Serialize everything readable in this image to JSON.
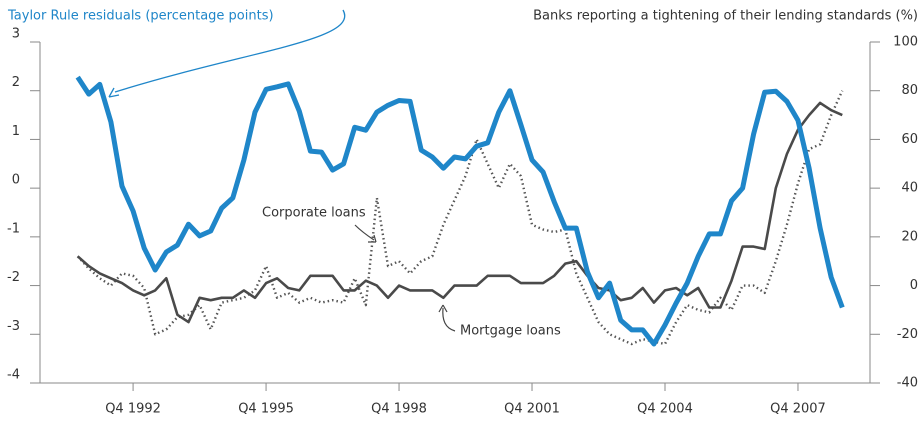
{
  "chart_data": {
    "type": "line",
    "y2label": "Banks reporting a tightening of their lending standards (%)",
    "x": [
      1991.5,
      1991.75,
      1992,
      1992.25,
      1992.5,
      1992.75,
      1993,
      1993.25,
      1993.5,
      1993.75,
      1994,
      1994.25,
      1994.5,
      1994.75,
      1995,
      1995.25,
      1995.5,
      1995.75,
      1996,
      1996.25,
      1996.5,
      1996.75,
      1997,
      1997.25,
      1997.5,
      1997.75,
      1998,
      1998.25,
      1998.5,
      1998.75,
      1999,
      1999.25,
      1999.5,
      1999.75,
      2000,
      2000.25,
      2000.5,
      2000.75,
      2001,
      2001.25,
      2001.5,
      2001.75,
      2002,
      2002.25,
      2002.5,
      2002.75,
      2003,
      2003.25,
      2003.5,
      2003.75,
      2004,
      2004.25,
      2004.5,
      2004.75,
      2005,
      2005.25,
      2005.5,
      2005.75,
      2006,
      2006.25,
      2006.5,
      2006.75,
      2007,
      2007.25,
      2007.5,
      2007.75,
      2008,
      2008.25,
      2008.5,
      2008.75
    ],
    "xlim": [
      1990.65,
      2009.375
    ],
    "xticks": [
      {
        "value": 1992.75,
        "label": "Q4 1992"
      },
      {
        "value": 1995.75,
        "label": "Q4 1995"
      },
      {
        "value": 1998.75,
        "label": "Q4 1998"
      },
      {
        "value": 2001.75,
        "label": "Q4 2001"
      },
      {
        "value": 2004.75,
        "label": "Q4 2004"
      },
      {
        "value": 2007.75,
        "label": "Q4 2007"
      }
    ],
    "ylim": [
      -4,
      3
    ],
    "yticks": [
      3,
      2,
      1,
      0,
      -1,
      -2,
      -3,
      -4
    ],
    "y2lim": [
      -40,
      100
    ],
    "y2ticks": [
      100,
      80,
      60,
      40,
      20,
      0,
      -20,
      -40
    ],
    "series": [
      {
        "name": "Taylor Rule residuals (percentage points)",
        "color": "#1f86c9",
        "style": "solid",
        "values": [
          2.28,
          1.93,
          2.13,
          1.36,
          0.04,
          -0.47,
          -1.23,
          -1.68,
          -1.31,
          -1.17,
          -0.74,
          -0.98,
          -0.88,
          -0.41,
          -0.2,
          0.58,
          1.56,
          2.03,
          2.08,
          2.14,
          1.58,
          0.76,
          0.74,
          0.37,
          0.5,
          1.25,
          1.19,
          1.56,
          1.7,
          1.8,
          1.78,
          0.78,
          0.64,
          0.41,
          0.64,
          0.6,
          0.86,
          0.93,
          1.56,
          2.0,
          1.3,
          0.58,
          0.33,
          -0.28,
          -0.82,
          -0.82,
          -1.72,
          -2.25,
          -1.95,
          -2.71,
          -2.91,
          -2.91,
          -3.2,
          -2.81,
          -2.36,
          -1.95,
          -1.4,
          -0.94,
          -0.94,
          -0.26,
          0,
          1.11,
          1.97,
          1.99,
          1.78,
          1.39,
          0.41,
          -0.82,
          -1.83,
          -2.45
        ]
      },
      {
        "name": "Corporate loans",
        "color": "#555555",
        "style": "dotted",
        "axis": "y2",
        "values": [
          12,
          7,
          3,
          0,
          5,
          4,
          -1,
          -20,
          -18,
          -13,
          -12,
          -8,
          -18,
          -7,
          -6,
          -5,
          -2,
          8,
          -5,
          -3,
          -7,
          -5,
          -7,
          -6,
          -7,
          3,
          -8,
          36,
          8,
          10,
          5,
          10,
          12,
          25,
          35,
          45,
          60,
          50,
          40,
          50,
          45,
          25,
          23,
          22,
          23,
          5,
          -5,
          -15,
          -20,
          -22,
          -24,
          -22,
          -23,
          -24,
          -15,
          -8,
          -10,
          -11,
          -5,
          -10,
          0,
          0,
          -3,
          10,
          25,
          42,
          56,
          58,
          70,
          80
        ]
      },
      {
        "name": "Mortgage loans",
        "color": "#4a4a4a",
        "style": "solid",
        "axis": "y2",
        "values": [
          12,
          8,
          5,
          3,
          1,
          -2,
          -4,
          -2,
          3,
          -12,
          -15,
          -5,
          -6,
          -5,
          -5,
          -2,
          -5,
          1,
          3,
          -1,
          -2,
          4,
          4,
          4,
          -2,
          -2,
          2,
          0,
          -5,
          0,
          -2,
          -2,
          -2,
          -5,
          0,
          0,
          0,
          4,
          4,
          4,
          1,
          1,
          1,
          4,
          9,
          10,
          4,
          -1,
          -2,
          -6,
          -5,
          -1,
          -7,
          -2,
          -1,
          -4,
          -1,
          -9,
          -9,
          2,
          16,
          16,
          15,
          40,
          54,
          64,
          70,
          75,
          72,
          70
        ]
      }
    ]
  }
}
